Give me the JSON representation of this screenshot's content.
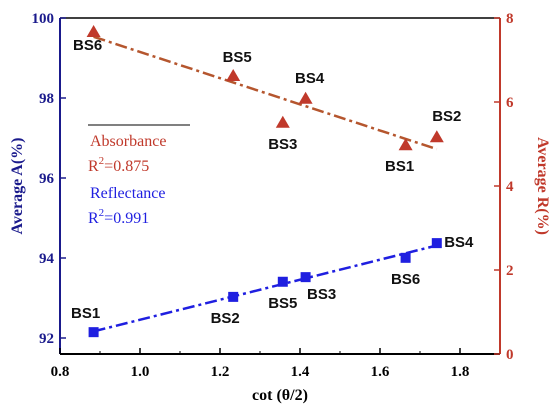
{
  "chart_data": {
    "type": "scatter",
    "xlabel": "cot (θ/2)",
    "ylabel_left": "Average A(%)",
    "ylabel_right": "Average R(%)",
    "xlim": [
      0.8,
      1.9
    ],
    "ylim_left": [
      91.6,
      100
    ],
    "ylim_right": [
      0,
      8
    ],
    "x_ticks": [
      "0.8",
      "1.0",
      "1.2",
      "1.4",
      "1.6",
      "1.8"
    ],
    "y_left_ticks": [
      "92",
      "94",
      "96",
      "98",
      "100"
    ],
    "y_right_ticks": [
      "0",
      "2",
      "4",
      "6",
      "8"
    ],
    "colors": {
      "absorbance": "#c0392b",
      "reflectance": "#1f1fe0",
      "left_axis": "#1a1a8c",
      "right_axis": "#c0392b"
    },
    "series": [
      {
        "name": "Absorbance",
        "axis": "left",
        "marker": "triangle",
        "r2": "R2=0.875",
        "points": [
          {
            "label": "BS6",
            "x": 0.884,
            "y": 99.65
          },
          {
            "label": "BS5",
            "x": 1.233,
            "y": 98.55
          },
          {
            "label": "BS3",
            "x": 1.357,
            "y": 97.38
          },
          {
            "label": "BS4",
            "x": 1.414,
            "y": 97.98
          },
          {
            "label": "BS1",
            "x": 1.664,
            "y": 96.82
          },
          {
            "label": "BS2",
            "x": 1.742,
            "y": 97.02
          }
        ]
      },
      {
        "name": "Reflectance",
        "axis": "right",
        "marker": "square",
        "r2": "R2=0.991",
        "points": [
          {
            "label": "BS1",
            "x": 0.884,
            "y": 0.52
          },
          {
            "label": "BS2",
            "x": 1.233,
            "y": 1.36
          },
          {
            "label": "BS5",
            "x": 1.357,
            "y": 1.72
          },
          {
            "label": "BS3",
            "x": 1.414,
            "y": 1.83
          },
          {
            "label": "BS6",
            "x": 1.664,
            "y": 2.29
          },
          {
            "label": "BS4",
            "x": 1.742,
            "y": 2.64
          }
        ]
      }
    ]
  },
  "legend": {
    "absorbance_label": "Absorbance",
    "absorbance_r2_base": "R",
    "absorbance_r2_sup": "2",
    "absorbance_r2_value": "=0.875",
    "reflectance_label": "Reflectance",
    "reflectance_r2_base": "R",
    "reflectance_r2_sup": "2",
    "reflectance_r2_value": "=0.991"
  }
}
